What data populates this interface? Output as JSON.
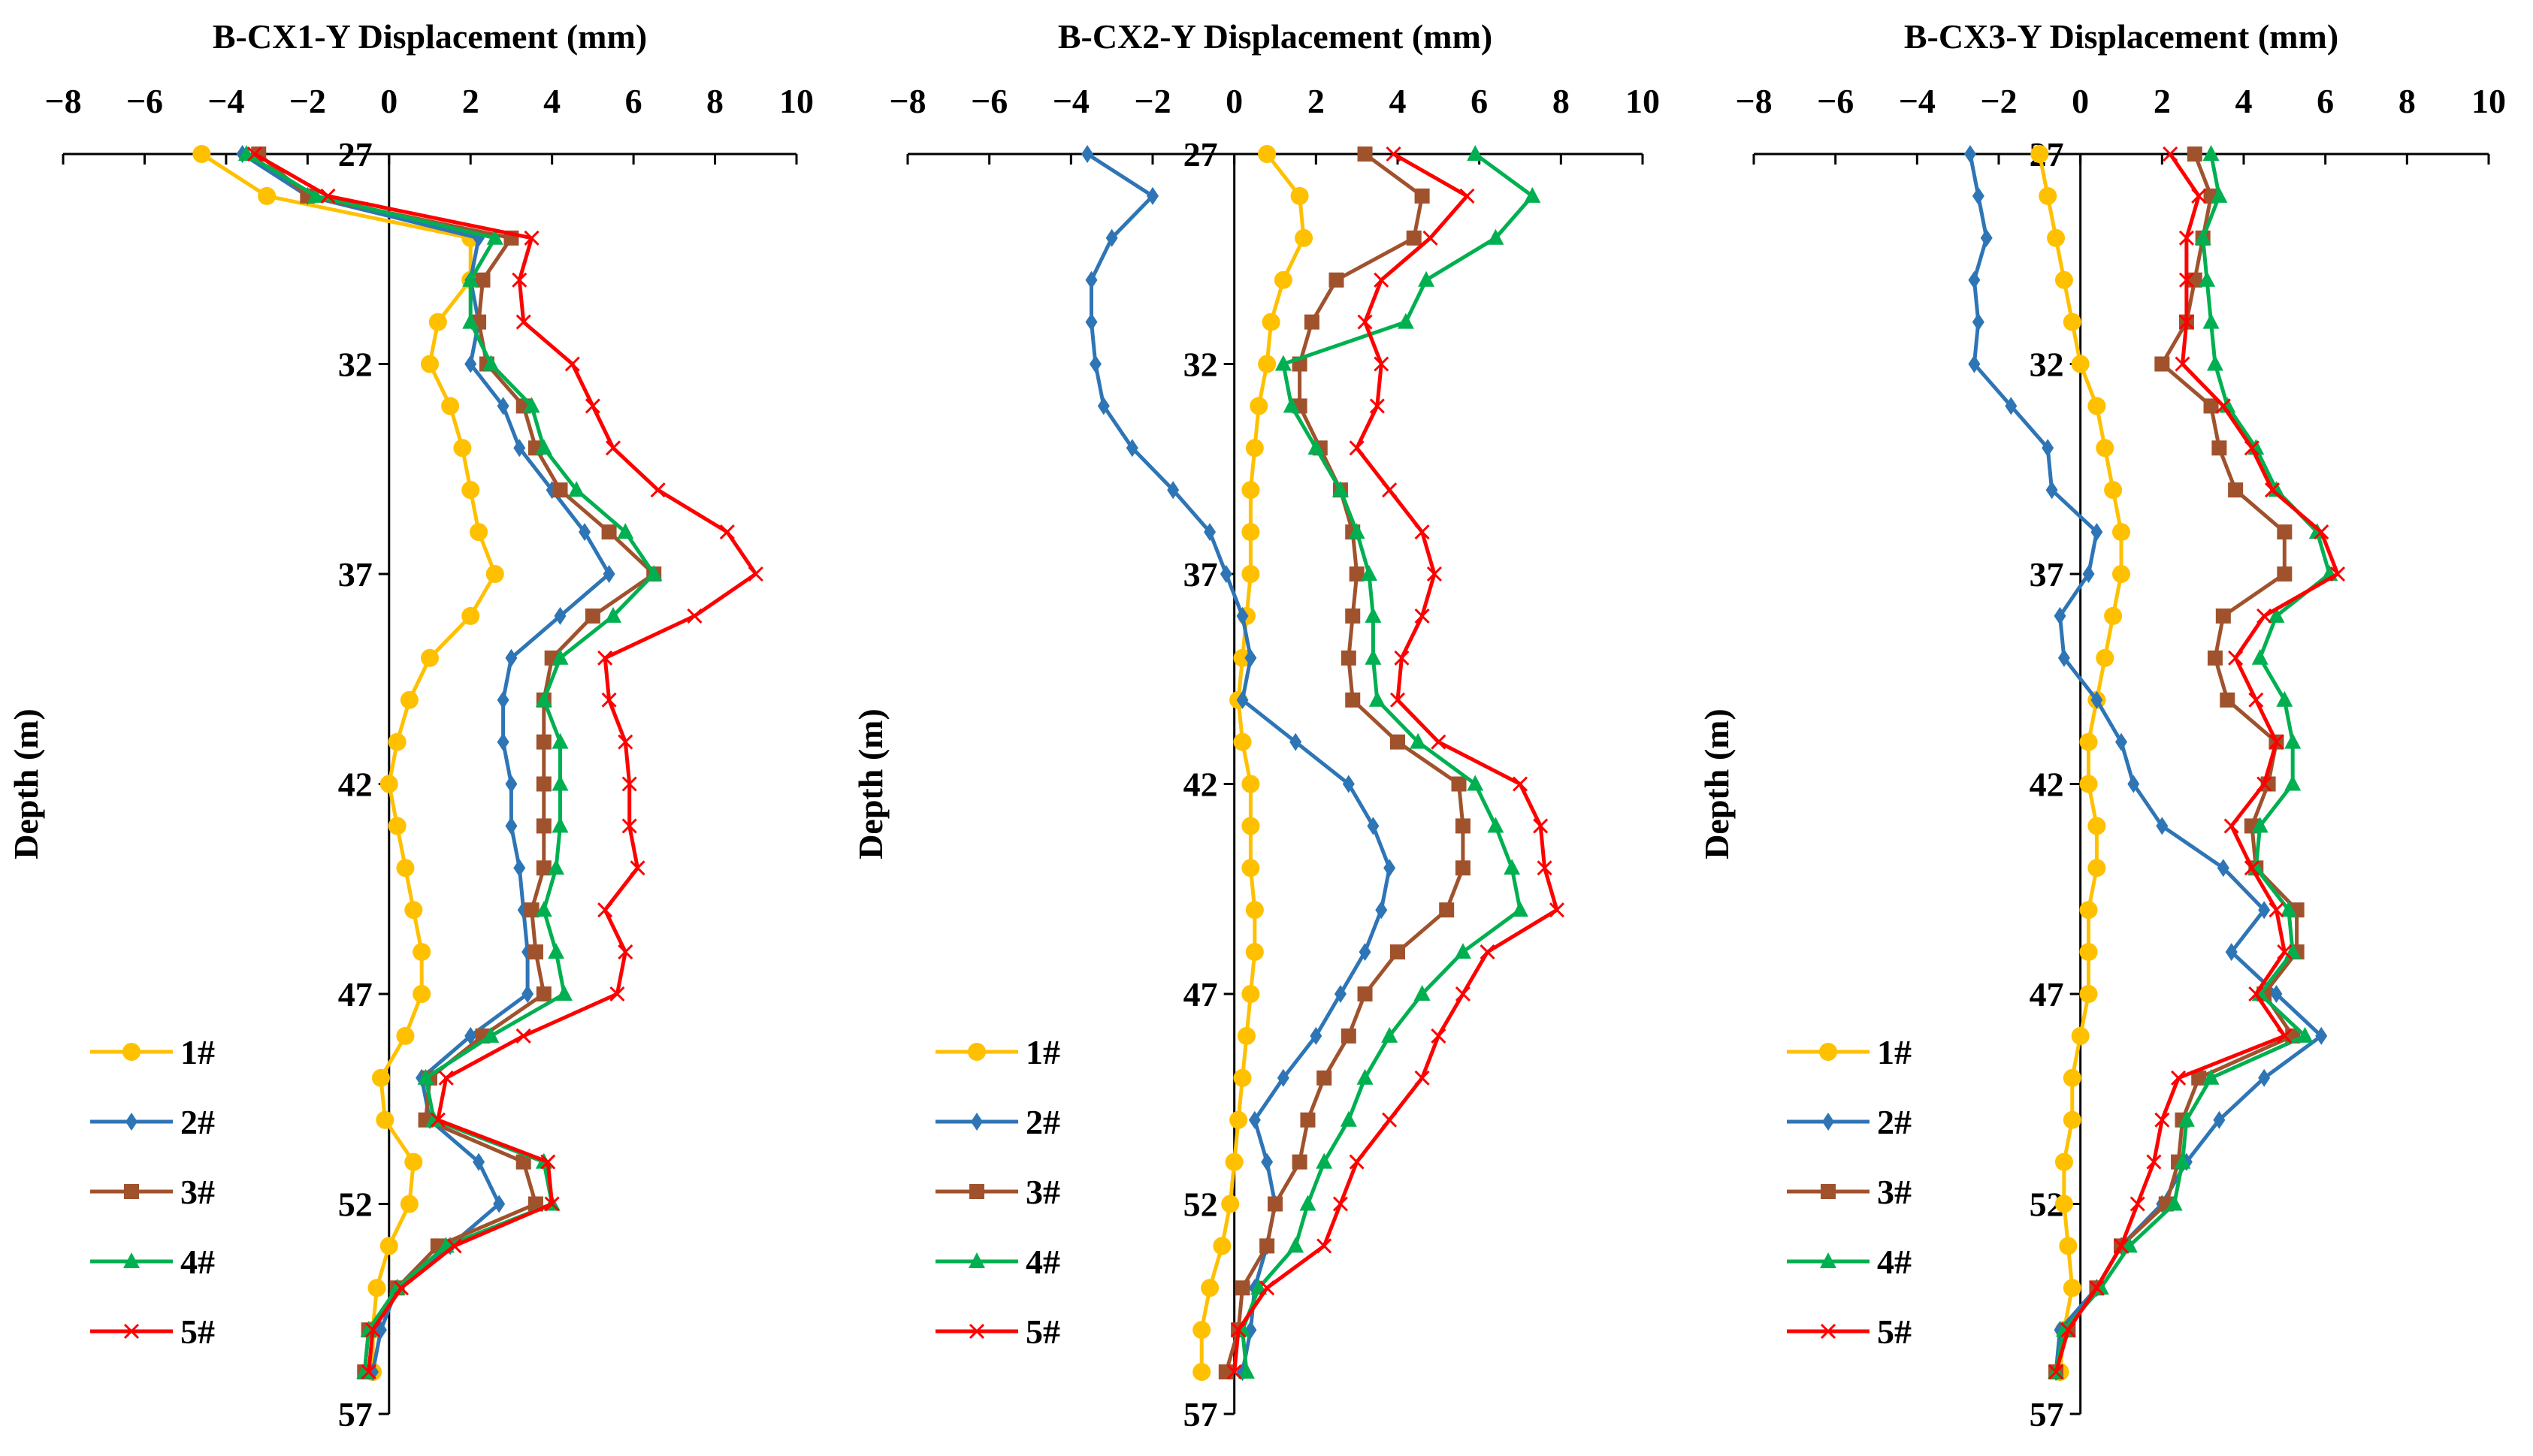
{
  "series_styles": [
    {
      "name": "1#",
      "color": "#FFC000",
      "marker": "circle"
    },
    {
      "name": "2#",
      "color": "#2E75B6",
      "marker": "diamond"
    },
    {
      "name": "3#",
      "color": "#A0522D",
      "marker": "square"
    },
    {
      "name": "4#",
      "color": "#00B050",
      "marker": "triangle"
    },
    {
      "name": "5#",
      "color": "#FF0000",
      "marker": "x"
    }
  ],
  "chart_data": [
    {
      "type": "line",
      "title": "B-CX1-Y Displacement  (mm)",
      "xlabel": "B-CX1-Y Displacement  (mm)",
      "ylabel": "Depth  (m)",
      "xlim": [
        -8,
        10
      ],
      "ylim": [
        57,
        27
      ],
      "x_ticks": [
        "−8",
        "−6",
        "−4",
        "−2",
        "0",
        "2",
        "4",
        "6",
        "8",
        "10"
      ],
      "y_ticks": [
        "27",
        "32",
        "37",
        "42",
        "47",
        "52",
        "57"
      ],
      "legend_position": "bottom-left",
      "depth": [
        27,
        28,
        29,
        30,
        31,
        32,
        33,
        34,
        35,
        36,
        37,
        38,
        39,
        40,
        41,
        42,
        43,
        44,
        45,
        46,
        47,
        48,
        49,
        50,
        51,
        52,
        53,
        54,
        55,
        56
      ],
      "series": [
        {
          "name": "1#",
          "values": [
            -4.6,
            -3.0,
            2.0,
            2.0,
            1.2,
            1.0,
            1.5,
            1.8,
            2.0,
            2.2,
            2.6,
            2.0,
            1.0,
            0.5,
            0.2,
            0.0,
            0.2,
            0.4,
            0.6,
            0.8,
            0.8,
            0.4,
            -0.2,
            -0.1,
            0.6,
            0.5,
            0.0,
            -0.3,
            -0.4,
            -0.4
          ]
        },
        {
          "name": "2#",
          "values": [
            -3.6,
            -2.0,
            2.2,
            2.0,
            2.2,
            2.0,
            2.8,
            3.2,
            4.0,
            4.8,
            5.4,
            4.2,
            3.0,
            2.8,
            2.8,
            3.0,
            3.0,
            3.2,
            3.3,
            3.4,
            3.4,
            2.0,
            0.8,
            1.0,
            2.2,
            2.7,
            1.5,
            0.2,
            -0.2,
            -0.4
          ]
        },
        {
          "name": "3#",
          "values": [
            -3.2,
            -2.0,
            3.0,
            2.3,
            2.2,
            2.4,
            3.3,
            3.6,
            4.2,
            5.4,
            6.5,
            5.0,
            4.0,
            3.8,
            3.8,
            3.8,
            3.8,
            3.8,
            3.5,
            3.6,
            3.8,
            2.3,
            1.0,
            0.9,
            3.3,
            3.6,
            1.2,
            0.2,
            -0.5,
            -0.6
          ]
        },
        {
          "name": "4#",
          "values": [
            -3.5,
            -1.8,
            2.6,
            2.0,
            2.0,
            2.5,
            3.5,
            3.8,
            4.6,
            5.8,
            6.5,
            5.5,
            4.2,
            3.8,
            4.2,
            4.2,
            4.2,
            4.1,
            3.8,
            4.1,
            4.3,
            2.5,
            0.9,
            1.1,
            3.8,
            4.0,
            1.4,
            0.2,
            -0.5,
            -0.6
          ]
        },
        {
          "name": "5#",
          "values": [
            -3.3,
            -1.5,
            3.5,
            3.2,
            3.3,
            4.5,
            5.0,
            5.5,
            6.6,
            8.3,
            9.0,
            7.5,
            5.3,
            5.4,
            5.8,
            5.9,
            5.9,
            6.1,
            5.3,
            5.8,
            5.6,
            3.3,
            1.4,
            1.2,
            3.9,
            4.0,
            1.6,
            0.3,
            -0.4,
            -0.5
          ]
        }
      ]
    },
    {
      "type": "line",
      "title": "B-CX2-Y Displacement  (mm)",
      "xlabel": "B-CX2-Y Displacement  (mm)",
      "ylabel": "Depth  (m)",
      "xlim": [
        -8,
        10
      ],
      "ylim": [
        57,
        27
      ],
      "x_ticks": [
        "−8",
        "−6",
        "−4",
        "−2",
        "0",
        "2",
        "4",
        "6",
        "8",
        "10"
      ],
      "y_ticks": [
        "27",
        "32",
        "37",
        "42",
        "47",
        "52",
        "57"
      ],
      "legend_position": "bottom-left",
      "depth": [
        27,
        28,
        29,
        30,
        31,
        32,
        33,
        34,
        35,
        36,
        37,
        38,
        39,
        40,
        41,
        42,
        43,
        44,
        45,
        46,
        47,
        48,
        49,
        50,
        51,
        52,
        53,
        54,
        55,
        56
      ],
      "series": [
        {
          "name": "1#",
          "values": [
            0.8,
            1.6,
            1.7,
            1.2,
            0.9,
            0.8,
            0.6,
            0.5,
            0.4,
            0.4,
            0.4,
            0.3,
            0.2,
            0.1,
            0.2,
            0.4,
            0.4,
            0.4,
            0.5,
            0.5,
            0.4,
            0.3,
            0.2,
            0.1,
            0.0,
            -0.1,
            -0.3,
            -0.6,
            -0.8,
            -0.8
          ]
        },
        {
          "name": "2#",
          "values": [
            -3.6,
            -2.0,
            -3.0,
            -3.5,
            -3.5,
            -3.4,
            -3.2,
            -2.5,
            -1.5,
            -0.6,
            -0.2,
            0.2,
            0.4,
            0.2,
            1.5,
            2.8,
            3.4,
            3.8,
            3.6,
            3.2,
            2.6,
            2.0,
            1.2,
            0.5,
            0.8,
            1.0,
            0.8,
            0.5,
            0.4,
            0.2
          ]
        },
        {
          "name": "3#",
          "values": [
            3.2,
            4.6,
            4.4,
            2.5,
            1.9,
            1.6,
            1.6,
            2.1,
            2.6,
            2.9,
            3.0,
            2.9,
            2.8,
            2.9,
            4.0,
            5.5,
            5.6,
            5.6,
            5.2,
            4.0,
            3.2,
            2.8,
            2.2,
            1.8,
            1.6,
            1.0,
            0.8,
            0.2,
            0.1,
            -0.2
          ]
        },
        {
          "name": "4#",
          "values": [
            5.9,
            7.3,
            6.4,
            4.7,
            4.2,
            1.2,
            1.4,
            2.0,
            2.6,
            3.0,
            3.3,
            3.4,
            3.4,
            3.5,
            4.5,
            5.9,
            6.4,
            6.8,
            7.0,
            5.6,
            4.6,
            3.8,
            3.2,
            2.8,
            2.2,
            1.8,
            1.5,
            0.6,
            0.2,
            0.3
          ]
        },
        {
          "name": "5#",
          "values": [
            3.9,
            5.7,
            4.8,
            3.6,
            3.2,
            3.6,
            3.5,
            3.0,
            3.8,
            4.6,
            4.9,
            4.6,
            4.1,
            4.0,
            5.0,
            7.0,
            7.5,
            7.6,
            7.9,
            6.2,
            5.6,
            5.0,
            4.6,
            3.8,
            3.0,
            2.6,
            2.2,
            0.8,
            0.1,
            0.0
          ]
        }
      ]
    },
    {
      "type": "line",
      "title": "B-CX3-Y Displacement  (mm)",
      "xlabel": "B-CX3-Y Displacement  (mm)",
      "ylabel": "Depth  (m)",
      "xlim": [
        -8,
        10
      ],
      "ylim": [
        57,
        27
      ],
      "x_ticks": [
        "−8",
        "−6",
        "−4",
        "−2",
        "0",
        "2",
        "4",
        "6",
        "8",
        "10"
      ],
      "y_ticks": [
        "27",
        "32",
        "37",
        "42",
        "47",
        "52",
        "57"
      ],
      "legend_position": "bottom-left",
      "depth": [
        27,
        28,
        29,
        30,
        31,
        32,
        33,
        34,
        35,
        36,
        37,
        38,
        39,
        40,
        41,
        42,
        43,
        44,
        45,
        46,
        47,
        48,
        49,
        50,
        51,
        52,
        53,
        54,
        55,
        56
      ],
      "series": [
        {
          "name": "1#",
          "values": [
            -1.0,
            -0.8,
            -0.6,
            -0.4,
            -0.2,
            0.0,
            0.4,
            0.6,
            0.8,
            1.0,
            1.0,
            0.8,
            0.6,
            0.4,
            0.2,
            0.2,
            0.4,
            0.4,
            0.2,
            0.2,
            0.2,
            0.0,
            -0.2,
            -0.2,
            -0.4,
            -0.4,
            -0.3,
            -0.2,
            -0.4,
            -0.5
          ]
        },
        {
          "name": "2#",
          "values": [
            -2.7,
            -2.5,
            -2.3,
            -2.6,
            -2.5,
            -2.6,
            -1.7,
            -0.8,
            -0.7,
            0.4,
            0.2,
            -0.5,
            -0.4,
            0.4,
            1.0,
            1.3,
            2.0,
            3.5,
            4.5,
            3.7,
            4.8,
            5.9,
            4.5,
            3.4,
            2.6,
            2.0,
            1.0,
            0.4,
            -0.5,
            -0.6
          ]
        },
        {
          "name": "3#",
          "values": [
            2.8,
            3.2,
            3.0,
            2.8,
            2.6,
            2.0,
            3.2,
            3.4,
            3.8,
            5.0,
            5.0,
            3.5,
            3.3,
            3.6,
            4.8,
            4.6,
            4.2,
            4.3,
            5.3,
            5.3,
            4.5,
            5.2,
            2.9,
            2.5,
            2.4,
            2.1,
            1.0,
            0.4,
            -0.3,
            -0.6
          ]
        },
        {
          "name": "4#",
          "values": [
            3.2,
            3.4,
            3.0,
            3.1,
            3.2,
            3.3,
            3.6,
            4.3,
            4.8,
            5.8,
            6.1,
            4.8,
            4.4,
            5.0,
            5.2,
            5.2,
            4.4,
            4.3,
            5.1,
            5.2,
            4.4,
            5.5,
            3.2,
            2.6,
            2.5,
            2.3,
            1.2,
            0.5,
            -0.4,
            -0.6
          ]
        },
        {
          "name": "5#",
          "values": [
            2.2,
            2.9,
            2.6,
            2.6,
            2.6,
            2.5,
            3.5,
            4.2,
            4.7,
            5.9,
            6.3,
            4.5,
            3.8,
            4.3,
            4.8,
            4.5,
            3.7,
            4.2,
            4.8,
            5.0,
            4.3,
            5.0,
            2.4,
            2.0,
            1.8,
            1.4,
            1.0,
            0.4,
            -0.3,
            -0.6
          ]
        }
      ]
    }
  ]
}
